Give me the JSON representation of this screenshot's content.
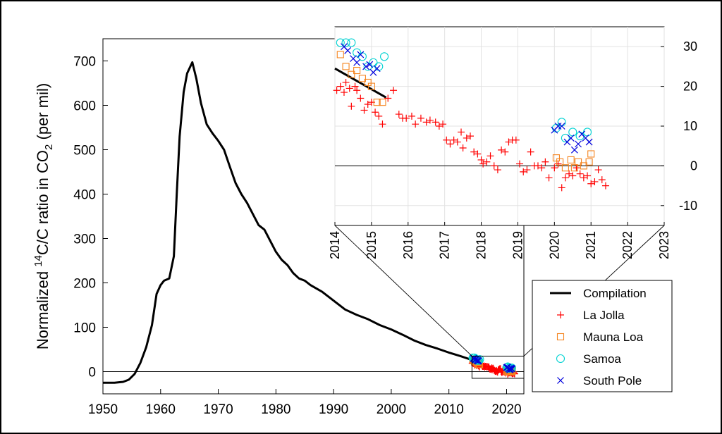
{
  "chart_data": [
    {
      "type": "line",
      "ylabel": {
        "prefix": "Normalized ",
        "sup": "14",
        "mid": "C/C ratio in CO",
        "sub": "2",
        "suffix": " (per mil)"
      },
      "xlim": [
        1950,
        2023
      ],
      "ylim": [
        -50,
        750
      ],
      "xticks": [
        1950,
        1960,
        1970,
        1980,
        1990,
        2000,
        2010,
        2020
      ],
      "yticks": [
        0,
        100,
        200,
        300,
        400,
        500,
        600,
        700
      ],
      "zero_line": true,
      "grid": false,
      "series": [
        {
          "name": "Compilation",
          "color": "#000000",
          "x": [
            1950,
            1952,
            1953.5,
            1954.5,
            1955.5,
            1956.5,
            1957.5,
            1958.5,
            1959.3,
            1960,
            1960.6,
            1961.5,
            1962.3,
            1962.8,
            1963.3,
            1964,
            1964.6,
            1965.5,
            1966.2,
            1967,
            1968,
            1969,
            1970,
            1971,
            1972,
            1973,
            1974,
            1975,
            1976,
            1977,
            1978,
            1979,
            1980,
            1981,
            1982,
            1983,
            1984,
            1985,
            1986,
            1988,
            1990,
            1992,
            1994,
            1996,
            1998,
            2000,
            2002,
            2004,
            2006,
            2008,
            2010,
            2012,
            2014.3,
            2015.5
          ],
          "y": [
            -25,
            -25,
            -23,
            -18,
            -5,
            20,
            55,
            105,
            175,
            195,
            205,
            210,
            260,
            400,
            530,
            630,
            672,
            697,
            660,
            605,
            557,
            537,
            520,
            500,
            462,
            425,
            400,
            380,
            355,
            330,
            320,
            295,
            270,
            252,
            240,
            222,
            210,
            205,
            195,
            180,
            160,
            140,
            128,
            118,
            105,
            95,
            83,
            70,
            60,
            52,
            43,
            35,
            25,
            21
          ]
        }
      ]
    },
    {
      "type": "scatter",
      "inset_of_range": {
        "x": [
          2014,
          2023
        ],
        "y": [
          -15,
          35
        ]
      },
      "xlim": [
        2014,
        2023
      ],
      "ylim": [
        -15,
        35
      ],
      "xticks": [
        2014,
        2015,
        2016,
        2017,
        2018,
        2019,
        2020,
        2021,
        2022,
        2023
      ],
      "yticks": [
        -10,
        0,
        10,
        20,
        30
      ],
      "grid": true,
      "zero_line": true,
      "series": [
        {
          "name": "Compilation",
          "marker": "line",
          "color": "#000000",
          "x": [
            2014.0,
            2015.4
          ],
          "y": [
            24.5,
            17.2
          ]
        },
        {
          "name": "La Jolla",
          "marker": "plus",
          "color": "#ff0000",
          "x": [
            2014.05,
            2014.15,
            2014.25,
            2014.3,
            2014.4,
            2014.45,
            2014.55,
            2014.6,
            2014.7,
            2014.8,
            2014.9,
            2015.0,
            2015.1,
            2015.2,
            2015.3,
            2015.45,
            2015.6,
            2015.75,
            2015.85,
            2015.95,
            2016.1,
            2016.2,
            2016.35,
            2016.5,
            2016.6,
            2016.75,
            2016.85,
            2016.95,
            2017.05,
            2017.15,
            2017.25,
            2017.35,
            2017.45,
            2017.5,
            2017.6,
            2017.7,
            2017.8,
            2017.9,
            2018.0,
            2018.05,
            2018.15,
            2018.25,
            2018.35,
            2018.45,
            2018.55,
            2018.65,
            2018.75,
            2018.85,
            2018.95,
            2019.05,
            2019.15,
            2019.25,
            2019.35,
            2019.45,
            2019.55,
            2019.65,
            2019.75,
            2019.85,
            2020.0,
            2020.1,
            2020.2,
            2020.3,
            2020.4,
            2020.5,
            2020.6,
            2020.7,
            2020.8,
            2020.9,
            2021.0,
            2021.1,
            2021.2,
            2021.3,
            2021.4
          ],
          "y": [
            19,
            20,
            18.5,
            21,
            19.5,
            15,
            20,
            19,
            17,
            14,
            15.5,
            16,
            13.5,
            12.5,
            10.5,
            17,
            19,
            13,
            12,
            12,
            12.5,
            10.5,
            12,
            11,
            11.5,
            11,
            10,
            10.5,
            6.5,
            5.5,
            6.5,
            6,
            8.5,
            4.5,
            7,
            7.5,
            3.5,
            3,
            1.5,
            0.5,
            1,
            2.5,
            0,
            -1,
            4,
            3.5,
            6,
            6.5,
            6.5,
            0.5,
            -1.5,
            -1,
            3.5,
            0,
            0,
            -0.5,
            1,
            -3,
            -0.5,
            0.5,
            -5.5,
            -3,
            -2,
            -2.5,
            -0.5,
            -2,
            -3,
            -2.5,
            -4.5,
            -4,
            -1,
            -3.5,
            -5
          ]
        },
        {
          "name": "Mauna Loa",
          "marker": "square",
          "color": "#f5841f",
          "x": [
            2014.15,
            2014.3,
            2014.45,
            2014.6,
            2014.75,
            2014.9,
            2015.0,
            2015.15,
            2015.3,
            2020.05,
            2020.15,
            2020.3,
            2020.45,
            2020.55,
            2020.65,
            2020.8,
            2020.95,
            2021.0
          ],
          "y": [
            28,
            25,
            23,
            24,
            22,
            21,
            20,
            16,
            16,
            2,
            1,
            -0.5,
            1.5,
            -0.5,
            1,
            0,
            1,
            3
          ]
        },
        {
          "name": "Samoa",
          "marker": "circle",
          "color": "#00d2d2",
          "x": [
            2014.15,
            2014.3,
            2014.45,
            2014.6,
            2014.75,
            2014.9,
            2015.05,
            2015.2,
            2015.35,
            2020.05,
            2020.2,
            2020.3,
            2020.5,
            2020.7,
            2020.9
          ],
          "y": [
            31,
            31,
            31,
            28.5,
            27.5,
            25,
            26,
            25,
            27.5,
            9.5,
            11,
            7,
            8.5,
            7.5,
            8.5
          ]
        },
        {
          "name": "South Pole",
          "marker": "x",
          "color": "#0000dd",
          "x": [
            2014.25,
            2014.35,
            2014.5,
            2014.6,
            2014.7,
            2014.85,
            2014.95,
            2015.05,
            2015.15,
            2020.0,
            2020.1,
            2020.2,
            2020.35,
            2020.45,
            2020.55,
            2020.65,
            2020.75,
            2020.85,
            2020.95
          ],
          "y": [
            30,
            29,
            27,
            26,
            28,
            25,
            25.5,
            23.5,
            24.5,
            9,
            10,
            10,
            6,
            7,
            4,
            5.5,
            8,
            7,
            6
          ]
        }
      ]
    }
  ],
  "legend": {
    "placement": "bottom-right",
    "items": [
      {
        "label": "Compilation",
        "marker": "line",
        "color": "#000000"
      },
      {
        "label": "La Jolla",
        "marker": "plus",
        "color": "#ff0000"
      },
      {
        "label": "Mauna Loa",
        "marker": "square",
        "color": "#f5841f"
      },
      {
        "label": "Samoa",
        "marker": "circle",
        "color": "#00d2d2"
      },
      {
        "label": "South Pole",
        "marker": "x",
        "color": "#0000dd"
      }
    ]
  }
}
